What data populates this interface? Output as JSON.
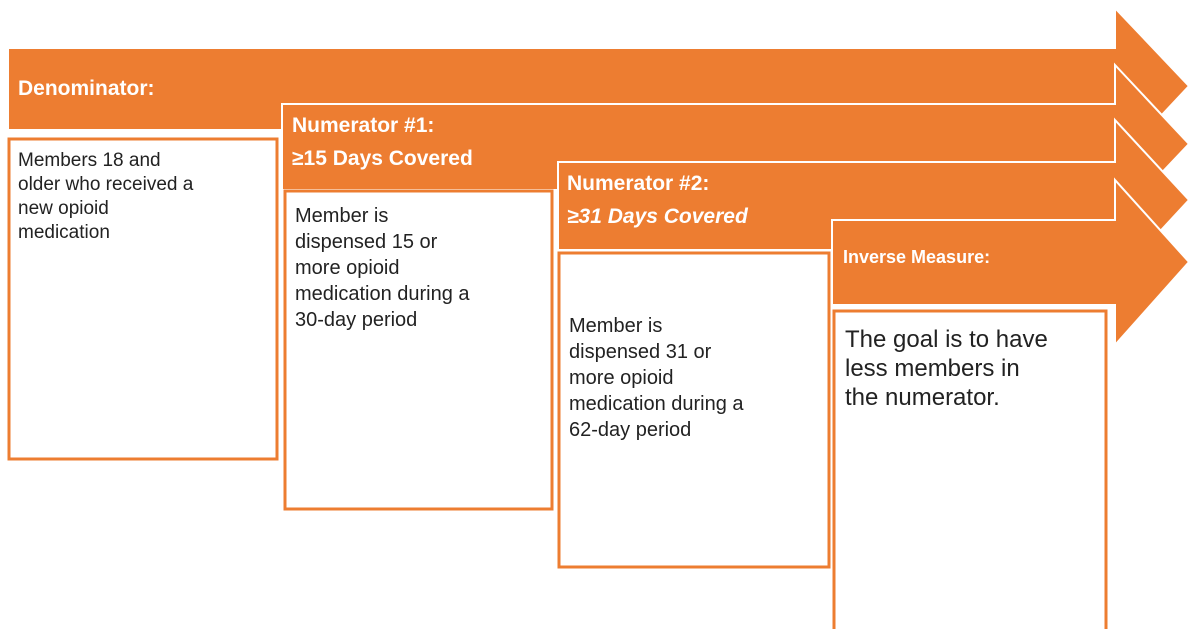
{
  "stages": [
    {
      "title": [
        "Denominator:"
      ],
      "body": [
        "Members 18 and",
        "older who received a",
        "new opioid",
        "medication"
      ]
    },
    {
      "title": [
        "Numerator #1:",
        "≥15 Days Covered"
      ],
      "body": [
        "Member is",
        "dispensed 15 or",
        "more opioid",
        "medication during a",
        "30-day period"
      ]
    },
    {
      "title": [
        "Numerator #2:",
        "≥31 Days Covered"
      ],
      "body": [
        "Member is",
        "dispensed 31 or",
        "more opioid",
        "medication during a",
        "62-day period"
      ]
    },
    {
      "title": [
        "Inverse Measure:"
      ],
      "body": [
        "The goal is to have",
        "less members in",
        "the numerator."
      ]
    }
  ]
}
